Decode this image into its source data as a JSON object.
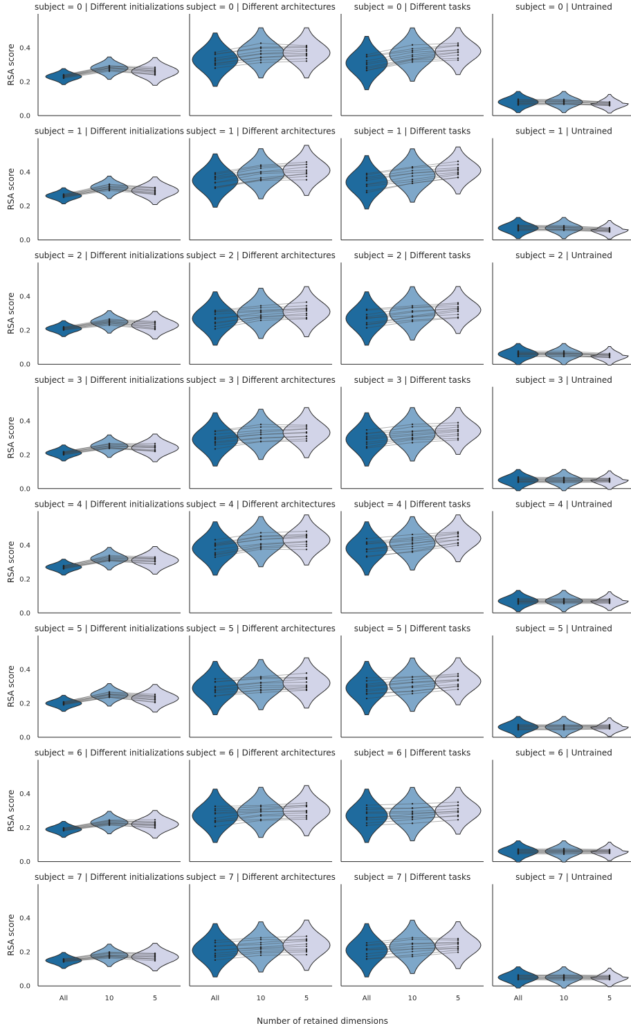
{
  "chart_data": {
    "type": "violin",
    "layout": "facet-grid",
    "row_var": "subject",
    "col_var": "condition",
    "rows": [
      0,
      1,
      2,
      3,
      4,
      5,
      6,
      7
    ],
    "columns": [
      "Different initializations",
      "Different architectures",
      "Different tasks",
      "Untrained"
    ],
    "title_template": "subject = {row} | {col}",
    "categories": [
      "All",
      "10",
      "5"
    ],
    "xlabel": "Number of retained dimensions",
    "ylabel": "RSA score",
    "ylim": [
      0.0,
      0.6
    ],
    "yticks": [
      "0.0",
      "0.2",
      "0.4"
    ],
    "yticks_values": [
      0.0,
      0.2,
      0.4
    ],
    "grid": false,
    "legend": "none",
    "series_colors": [
      "#1f6b9e",
      "#7ea7c9",
      "#d2d4e8"
    ],
    "median_rsa": [
      [
        0.23,
        0.28,
        0.26,
        0.33,
        0.37,
        0.37,
        0.31,
        0.36,
        0.38,
        0.08,
        0.08,
        0.07
      ],
      [
        0.26,
        0.31,
        0.29,
        0.35,
        0.39,
        0.41,
        0.34,
        0.38,
        0.41,
        0.07,
        0.07,
        0.06
      ],
      [
        0.21,
        0.25,
        0.23,
        0.27,
        0.3,
        0.31,
        0.27,
        0.3,
        0.32,
        0.06,
        0.06,
        0.05
      ],
      [
        0.21,
        0.25,
        0.24,
        0.29,
        0.32,
        0.33,
        0.29,
        0.32,
        0.34,
        0.05,
        0.05,
        0.05
      ],
      [
        0.27,
        0.32,
        0.31,
        0.38,
        0.42,
        0.43,
        0.38,
        0.41,
        0.44,
        0.07,
        0.07,
        0.07
      ],
      [
        0.2,
        0.25,
        0.23,
        0.29,
        0.31,
        0.32,
        0.29,
        0.31,
        0.33,
        0.06,
        0.06,
        0.06
      ],
      [
        0.19,
        0.23,
        0.22,
        0.27,
        0.29,
        0.3,
        0.27,
        0.28,
        0.3,
        0.06,
        0.06,
        0.06
      ],
      [
        0.15,
        0.18,
        0.17,
        0.21,
        0.23,
        0.24,
        0.21,
        0.23,
        0.24,
        0.05,
        0.05,
        0.05
      ]
    ]
  }
}
